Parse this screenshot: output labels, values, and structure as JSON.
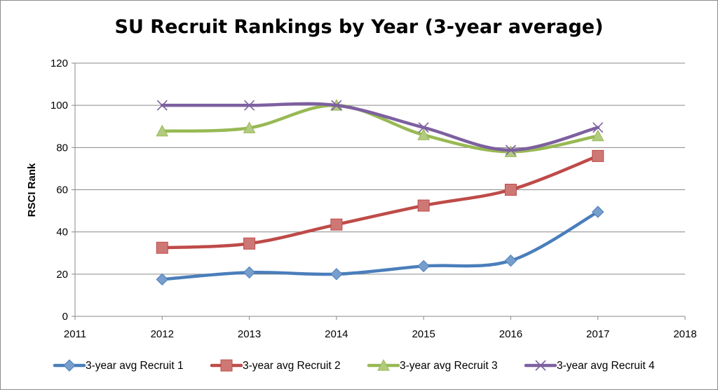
{
  "chart_data": {
    "type": "line",
    "title": "SU Recruit Rankings by Year (3-year average)",
    "xlabel": "",
    "ylabel": "RSCI Rank",
    "xlim": [
      2011,
      2018
    ],
    "ylim": [
      0,
      120
    ],
    "x_ticks": [
      "2011",
      "2012",
      "2013",
      "2014",
      "2015",
      "2016",
      "2017",
      "2018"
    ],
    "y_ticks": [
      "0",
      "20",
      "40",
      "60",
      "80",
      "100",
      "120"
    ],
    "grid": "horizontal",
    "legend_position": "bottom",
    "x": [
      2012,
      2013,
      2014,
      2015,
      2016,
      2017
    ],
    "series": [
      {
        "name": "3-year avg Recruit 1",
        "values": [
          17.5,
          20.8,
          20,
          23.8,
          26.4,
          49.5
        ],
        "color": "#4a7ebb",
        "marker": "diamond"
      },
      {
        "name": "3-year avg Recruit 2",
        "values": [
          32.5,
          34.5,
          43.5,
          52.5,
          60,
          76
        ],
        "color": "#be4b48",
        "marker": "square"
      },
      {
        "name": "3-year avg Recruit 3",
        "values": [
          87.8,
          89.3,
          100,
          86,
          78,
          85.5
        ],
        "color": "#98b954",
        "marker": "triangle"
      },
      {
        "name": "3-year avg Recruit 4",
        "values": [
          100,
          100,
          100,
          89.5,
          78.8,
          89.5
        ],
        "color": "#7d60a0",
        "marker": "x"
      }
    ]
  }
}
